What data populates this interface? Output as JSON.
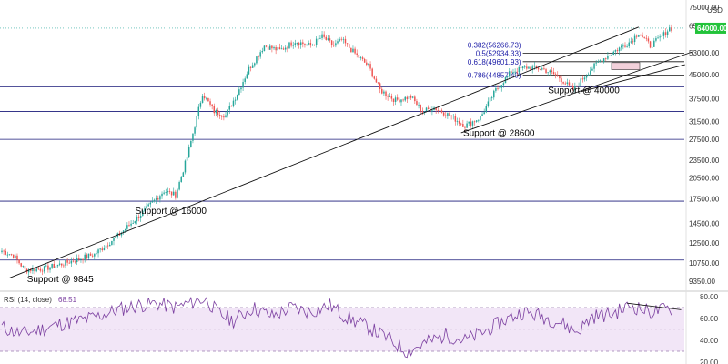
{
  "chart_data": [
    {
      "type": "candlestick",
      "currency": "USD",
      "y_scale": "log",
      "ylim": [
        8800,
        75000
      ],
      "y_ticks": [
        75000,
        65000,
        53000,
        45000,
        37500,
        31500,
        27500,
        23500,
        20500,
        17500,
        14500,
        12500,
        10750,
        9350
      ],
      "y_tick_labels": [
        "75000.00",
        "65000.00",
        "53000.00",
        "45000.00",
        "37500.00",
        "31500.00",
        "27500.00",
        "23500.00",
        "20500.00",
        "17500.00",
        "14500.00",
        "12500.00",
        "10750.00",
        "9350.00"
      ],
      "last_price": 64000,
      "last_price_label": "64000.00",
      "up_color": "#26a69a",
      "down_color": "#ef5350",
      "horizontal_levels": [
        41000,
        34000,
        27500,
        17200,
        11000
      ],
      "horizontal_level_color": "#1a1a7a",
      "fib_levels": [
        {
          "label": "0.382(56266.73)",
          "value": 56266.73
        },
        {
          "label": "0.5(52934.33)",
          "value": 52934.33
        },
        {
          "label": "0.618(49601.93)",
          "value": 49601.93
        },
        {
          "label": "0.786(44857.49)",
          "value": 44857.49
        }
      ],
      "annotations": [
        "Support @ 9845",
        "Support @ 16000",
        "Support @ 28600",
        "Support @ 40000"
      ],
      "anchors": [
        [
          0,
          11800
        ],
        [
          6,
          11400
        ],
        [
          12,
          10200
        ],
        [
          22,
          10300
        ],
        [
          34,
          10800
        ],
        [
          48,
          11500
        ],
        [
          60,
          13200
        ],
        [
          74,
          16000
        ],
        [
          84,
          18600
        ],
        [
          90,
          18000
        ],
        [
          96,
          24000
        ],
        [
          104,
          39000
        ],
        [
          110,
          34000
        ],
        [
          116,
          33000
        ],
        [
          122,
          39000
        ],
        [
          128,
          47000
        ],
        [
          136,
          56000
        ],
        [
          144,
          54000
        ],
        [
          152,
          58000
        ],
        [
          160,
          56000
        ],
        [
          166,
          60000
        ],
        [
          172,
          56000
        ],
        [
          176,
          58500
        ],
        [
          184,
          52000
        ],
        [
          190,
          48000
        ],
        [
          196,
          40000
        ],
        [
          204,
          37000
        ],
        [
          212,
          38000
        ],
        [
          218,
          34000
        ],
        [
          224,
          35000
        ],
        [
          232,
          33000
        ],
        [
          240,
          30500
        ],
        [
          248,
          32500
        ],
        [
          256,
          40000
        ],
        [
          264,
          46000
        ],
        [
          272,
          47500
        ],
        [
          280,
          47000
        ],
        [
          288,
          44500
        ],
        [
          296,
          40000
        ],
        [
          304,
          46000
        ],
        [
          310,
          50000
        ],
        [
          318,
          54000
        ],
        [
          326,
          58000
        ],
        [
          330,
          62000
        ],
        [
          336,
          56000
        ],
        [
          342,
          60000
        ],
        [
          346,
          64000
        ]
      ]
    },
    {
      "type": "line",
      "title": "RSI (14, close)",
      "current_value": "68.51",
      "line_color": "#7b3fa0",
      "band": [
        30,
        70
      ],
      "band_color": "#e9d6f2",
      "ylim": [
        20,
        80
      ],
      "y_ticks": [
        80,
        60,
        40,
        20
      ],
      "y_tick_labels": [
        "80.00",
        "60.00",
        "40.00",
        "20.00"
      ],
      "anchors": [
        [
          0,
          52
        ],
        [
          10,
          46
        ],
        [
          20,
          50
        ],
        [
          30,
          55
        ],
        [
          40,
          58
        ],
        [
          50,
          62
        ],
        [
          60,
          68
        ],
        [
          70,
          72
        ],
        [
          80,
          74
        ],
        [
          90,
          70
        ],
        [
          100,
          76
        ],
        [
          106,
          78
        ],
        [
          112,
          65
        ],
        [
          120,
          58
        ],
        [
          130,
          70
        ],
        [
          140,
          62
        ],
        [
          150,
          70
        ],
        [
          160,
          66
        ],
        [
          170,
          72
        ],
        [
          180,
          60
        ],
        [
          190,
          52
        ],
        [
          200,
          42
        ],
        [
          210,
          30
        ],
        [
          220,
          38
        ],
        [
          230,
          45
        ],
        [
          240,
          40
        ],
        [
          250,
          48
        ],
        [
          260,
          58
        ],
        [
          270,
          66
        ],
        [
          280,
          62
        ],
        [
          290,
          56
        ],
        [
          298,
          48
        ],
        [
          306,
          62
        ],
        [
          316,
          64
        ],
        [
          326,
          72
        ],
        [
          336,
          66
        ],
        [
          346,
          69
        ]
      ]
    }
  ]
}
